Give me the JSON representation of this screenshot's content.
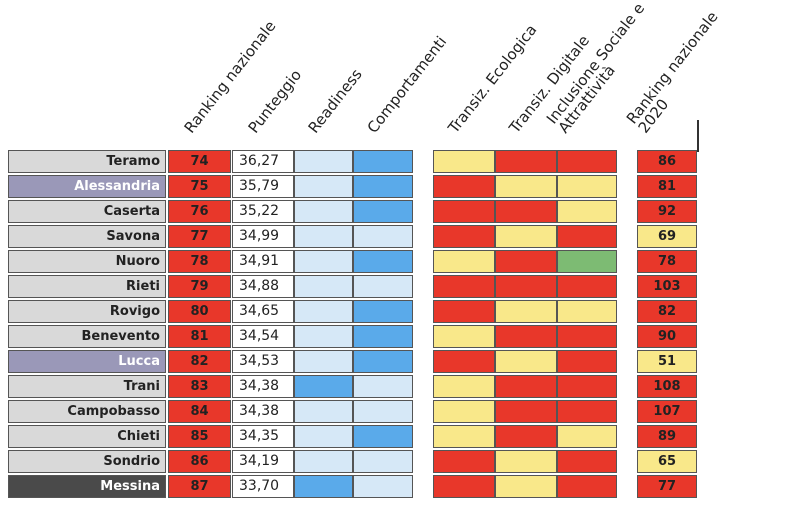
{
  "headers": {
    "cut": "e",
    "ranking": "Ranking nazionale",
    "punteggio": "Punteggio",
    "readiness": "Readiness",
    "comportamenti": "Comportamenti",
    "eco": "Transiz. Ecologica",
    "dig": "Transiz. Digitale",
    "incl1": "Inclusione Sociale e",
    "incl2": "Attrattività",
    "r2020a": "Ranking nazionale",
    "r2020b": "2020"
  },
  "colors": {
    "red": "#e8372a",
    "yellow": "#f9e88a",
    "green": "#7dbb73",
    "light_blue": "#d6e8f7",
    "blue": "#5aaaea",
    "purple_highlight": "#9a98b8",
    "dark_highlight": "#4a4a4a"
  },
  "chart_data": {
    "type": "table",
    "columns": [
      "Ranking nazionale",
      "Punteggio",
      "Readiness",
      "Comportamenti",
      "Transiz. Ecologica",
      "Transiz. Digitale",
      "Inclusione Sociale e Attrattività",
      "Ranking nazionale 2020"
    ],
    "rows": [
      {
        "city": "Teramo",
        "highlight": "",
        "rank": "74",
        "score": "36,27",
        "readiness": "light",
        "comportamenti": "blue",
        "eco": "yellow",
        "dig": "red",
        "incl": "red",
        "r2020": "86",
        "r2020_color": "red"
      },
      {
        "city": "Alessandria",
        "highlight": "purple",
        "rank": "75",
        "score": "35,79",
        "readiness": "light",
        "comportamenti": "blue",
        "eco": "red",
        "dig": "yellow",
        "incl": "yellow",
        "r2020": "81",
        "r2020_color": "red"
      },
      {
        "city": "Caserta",
        "highlight": "",
        "rank": "76",
        "score": "35,22",
        "readiness": "light",
        "comportamenti": "blue",
        "eco": "red",
        "dig": "red",
        "incl": "yellow",
        "r2020": "92",
        "r2020_color": "red"
      },
      {
        "city": "Savona",
        "highlight": "",
        "rank": "77",
        "score": "34,99",
        "readiness": "light",
        "comportamenti": "light",
        "eco": "red",
        "dig": "yellow",
        "incl": "red",
        "r2020": "69",
        "r2020_color": "yellow"
      },
      {
        "city": "Nuoro",
        "highlight": "",
        "rank": "78",
        "score": "34,91",
        "readiness": "light",
        "comportamenti": "blue",
        "eco": "yellow",
        "dig": "red",
        "incl": "green",
        "r2020": "78",
        "r2020_color": "red"
      },
      {
        "city": "Rieti",
        "highlight": "",
        "rank": "79",
        "score": "34,88",
        "readiness": "light",
        "comportamenti": "light",
        "eco": "red",
        "dig": "red",
        "incl": "red",
        "r2020": "103",
        "r2020_color": "red"
      },
      {
        "city": "Rovigo",
        "highlight": "",
        "rank": "80",
        "score": "34,65",
        "readiness": "light",
        "comportamenti": "blue",
        "eco": "red",
        "dig": "yellow",
        "incl": "yellow",
        "r2020": "82",
        "r2020_color": "red"
      },
      {
        "city": "Benevento",
        "highlight": "",
        "rank": "81",
        "score": "34,54",
        "readiness": "light",
        "comportamenti": "blue",
        "eco": "yellow",
        "dig": "red",
        "incl": "red",
        "r2020": "90",
        "r2020_color": "red"
      },
      {
        "city": "Lucca",
        "highlight": "purple",
        "rank": "82",
        "score": "34,53",
        "readiness": "light",
        "comportamenti": "blue",
        "eco": "red",
        "dig": "yellow",
        "incl": "red",
        "r2020": "51",
        "r2020_color": "yellow"
      },
      {
        "city": "Trani",
        "highlight": "",
        "rank": "83",
        "score": "34,38",
        "readiness": "blue",
        "comportamenti": "light",
        "eco": "yellow",
        "dig": "red",
        "incl": "red",
        "r2020": "108",
        "r2020_color": "red"
      },
      {
        "city": "Campobasso",
        "highlight": "",
        "rank": "84",
        "score": "34,38",
        "readiness": "light",
        "comportamenti": "light",
        "eco": "yellow",
        "dig": "red",
        "incl": "red",
        "r2020": "107",
        "r2020_color": "red"
      },
      {
        "city": "Chieti",
        "highlight": "",
        "rank": "85",
        "score": "34,35",
        "readiness": "light",
        "comportamenti": "blue",
        "eco": "yellow",
        "dig": "red",
        "incl": "yellow",
        "r2020": "89",
        "r2020_color": "red"
      },
      {
        "city": "Sondrio",
        "highlight": "",
        "rank": "86",
        "score": "34,19",
        "readiness": "light",
        "comportamenti": "light",
        "eco": "red",
        "dig": "yellow",
        "incl": "red",
        "r2020": "65",
        "r2020_color": "yellow"
      },
      {
        "city": "Messina",
        "highlight": "dark",
        "rank": "87",
        "score": "33,70",
        "readiness": "blue",
        "comportamenti": "light",
        "eco": "red",
        "dig": "yellow",
        "incl": "red",
        "r2020": "77",
        "r2020_color": "red"
      }
    ]
  }
}
